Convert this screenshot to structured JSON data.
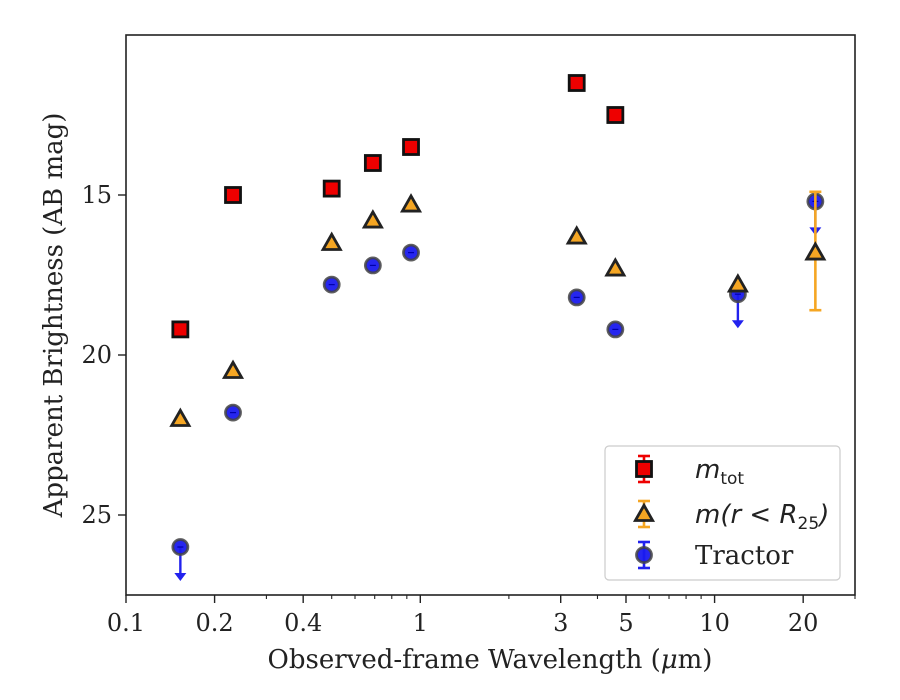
{
  "chart_data": {
    "type": "scatter",
    "xlabel_prefix": "Observed-frame Wavelength (",
    "xlabel_mu": "μ",
    "xlabel_suffix": "m)",
    "ylabel": "Apparent Brightness (AB mag)",
    "x_scale": "log",
    "xlim": [
      0.1,
      30
    ],
    "ylim": [
      27.5,
      10
    ],
    "y_inverted": true,
    "grid": false,
    "legend_position": "lower-right",
    "x_ticks": [
      {
        "value": 0.1,
        "label": "0.1"
      },
      {
        "value": 0.2,
        "label": "0.2"
      },
      {
        "value": 0.4,
        "label": "0.4"
      },
      {
        "value": 1,
        "label": "1"
      },
      {
        "value": 3,
        "label": "3"
      },
      {
        "value": 5,
        "label": "5"
      },
      {
        "value": 10,
        "label": "10"
      },
      {
        "value": 20,
        "label": "20"
      }
    ],
    "y_ticks": [
      {
        "value": 15,
        "label": "15"
      },
      {
        "value": 20,
        "label": "20"
      },
      {
        "value": 25,
        "label": "25"
      }
    ],
    "series": [
      {
        "name_main": "m",
        "name_sub": "tot",
        "marker": "square",
        "face": "#ee0000",
        "edge": "#111111",
        "err_color": "#ee0000",
        "points": [
          {
            "x": 0.153,
            "y": 19.2
          },
          {
            "x": 0.231,
            "y": 15.0
          },
          {
            "x": 0.5,
            "y": 14.8
          },
          {
            "x": 0.69,
            "y": 14.0
          },
          {
            "x": 0.93,
            "y": 13.5
          },
          {
            "x": 3.4,
            "y": 11.5
          },
          {
            "x": 4.6,
            "y": 12.5
          }
        ]
      },
      {
        "name_main": "m(r < R",
        "name_sub": "25",
        "name_tail": ")",
        "marker": "triangle",
        "face": "#f5a623",
        "edge": "#222222",
        "err_color": "#f5a623",
        "points": [
          {
            "x": 0.153,
            "y": 22.0
          },
          {
            "x": 0.231,
            "y": 20.5
          },
          {
            "x": 0.5,
            "y": 16.5
          },
          {
            "x": 0.69,
            "y": 15.8
          },
          {
            "x": 0.93,
            "y": 15.3
          },
          {
            "x": 3.4,
            "y": 16.3
          },
          {
            "x": 4.6,
            "y": 17.3
          },
          {
            "x": 12.0,
            "y": 17.8
          },
          {
            "x": 22.0,
            "y": 16.8,
            "err_low": 14.9,
            "err_high": 18.6
          }
        ]
      },
      {
        "name_main": "Tractor",
        "marker": "circle",
        "face": "#1a1aee",
        "edge": "#444444",
        "err_color": "#2222ee",
        "points": [
          {
            "x": 0.153,
            "y": 26.0,
            "upper_limit": true
          },
          {
            "x": 0.231,
            "y": 21.8
          },
          {
            "x": 0.5,
            "y": 17.8
          },
          {
            "x": 0.69,
            "y": 17.2
          },
          {
            "x": 0.93,
            "y": 16.8
          },
          {
            "x": 3.4,
            "y": 18.2
          },
          {
            "x": 4.6,
            "y": 19.2
          },
          {
            "x": 12.0,
            "y": 18.1,
            "upper_limit": true
          },
          {
            "x": 22.0,
            "y": 15.2,
            "upper_limit": true
          }
        ]
      }
    ]
  }
}
